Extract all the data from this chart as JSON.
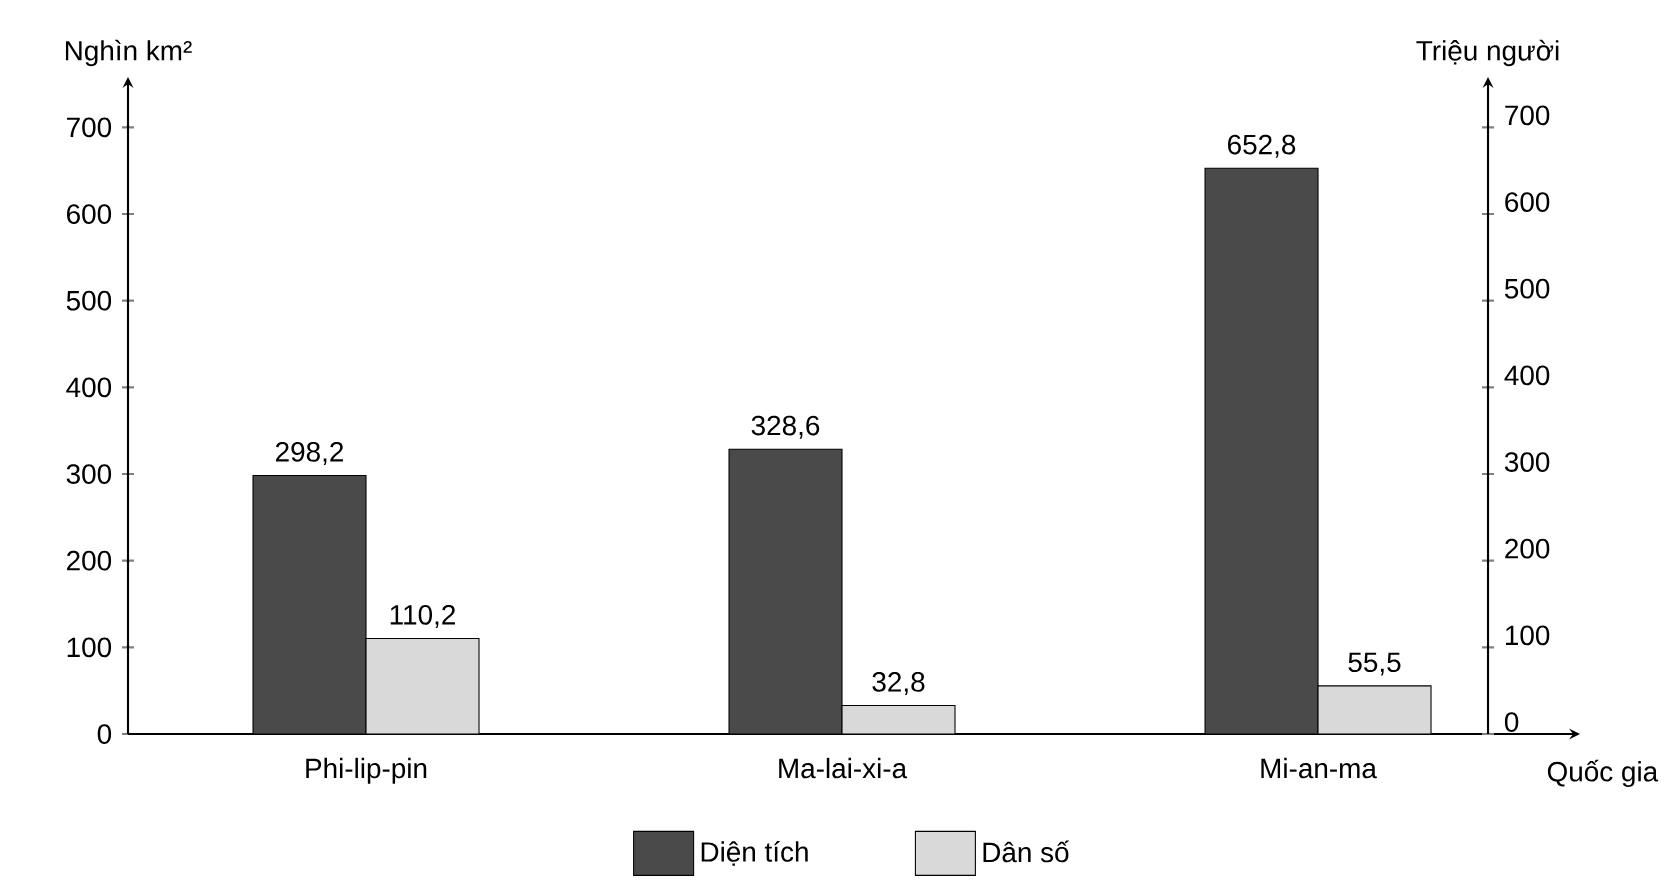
{
  "chart_data": {
    "type": "bar",
    "categories": [
      "Phi-lip-pin",
      "Ma-lai-xi-a",
      "Mi-an-ma"
    ],
    "xlabel": "Quốc gia",
    "ylabel": "Nghìn km²",
    "y2label": "Triệu người",
    "series": [
      {
        "name": "Diện tích",
        "color": "#4a4a4a",
        "values": [
          298.2,
          328.6,
          652.8
        ],
        "value_labels": [
          "298,2",
          "328,6",
          "652,8"
        ]
      },
      {
        "name": "Dân số",
        "color": "#d9d9d9",
        "axis": "y2",
        "values": [
          110.2,
          32.8,
          55.5
        ],
        "value_labels": [
          "110,2",
          "32,8",
          "55,5"
        ]
      }
    ],
    "ylim": [
      0,
      750
    ],
    "yticks": [
      0,
      100,
      200,
      300,
      400,
      500,
      600,
      700
    ],
    "y2lim": [
      0,
      750
    ],
    "y2ticks": [
      0,
      100,
      200,
      300,
      400,
      500,
      600,
      700
    ],
    "legend": "bottom"
  }
}
